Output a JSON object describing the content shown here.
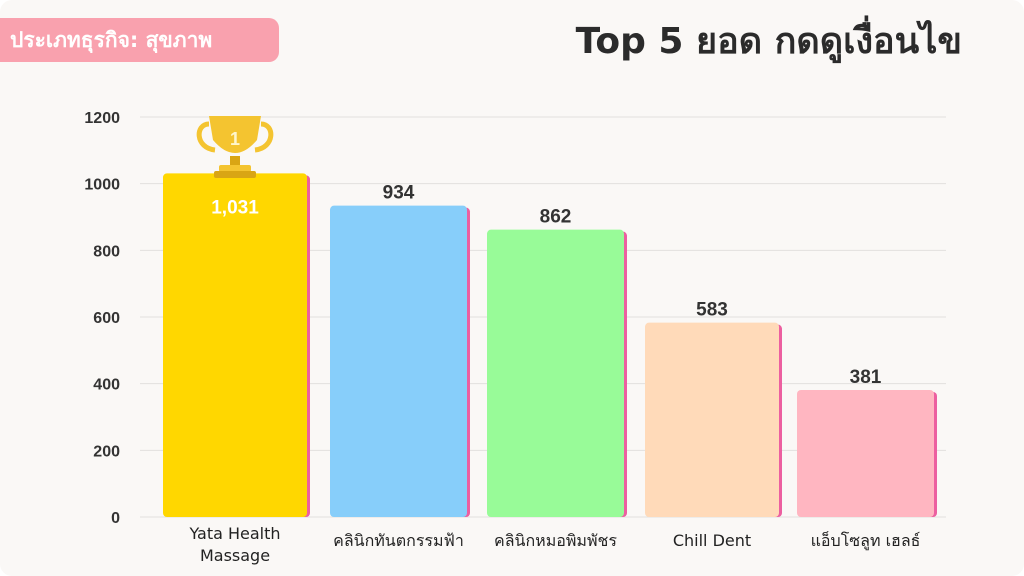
{
  "header": {
    "category_badge": "ประเภทธุรกิจ: สุขภาพ",
    "title": "Top 5 ยอด กดดูเงื่อนไข"
  },
  "trophy": {
    "icon": "trophy-icon",
    "rank": "1",
    "color": "#f4c430"
  },
  "chart_data": {
    "type": "bar",
    "title": "Top 5 ยอด กดดูเงื่อนไข",
    "categories": [
      [
        "Yata Health",
        "Massage"
      ],
      [
        "คลินิกทันตกรรมฟ้า"
      ],
      [
        "คลินิกหมอพิมพัชร"
      ],
      [
        "Chill Dent"
      ],
      [
        "แอ็บโซลูท เฮลธ์"
      ]
    ],
    "values": [
      1031,
      934,
      862,
      583,
      381
    ],
    "value_labels": [
      "1,031",
      "934",
      "862",
      "583",
      "381"
    ],
    "colors": [
      "#ffd700",
      "#87cefa",
      "#98fb98",
      "#ffdab9",
      "#ffb6c1"
    ],
    "edge_color": "#ec5fa0",
    "ylim": [
      0,
      1200
    ],
    "yticks": [
      0,
      200,
      400,
      600,
      800,
      1000,
      1200
    ],
    "grid": true,
    "xlabel": "",
    "ylabel": ""
  }
}
